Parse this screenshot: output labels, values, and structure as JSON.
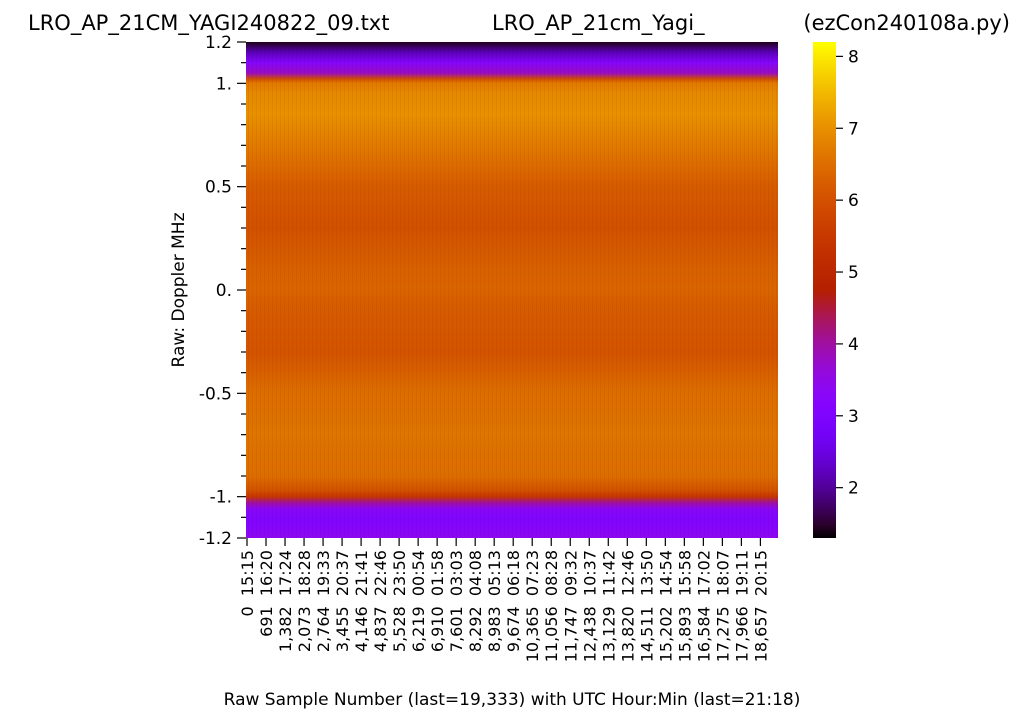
{
  "header": {
    "left": "LRO_AP_21CM_YAGI240822_09.txt",
    "center": "LRO_AP_21cm_Yagi_",
    "right": "(ezCon240108a.py)"
  },
  "chart_data": {
    "type": "heatmap",
    "ylabel": "Raw:  Doppler MHz",
    "xlabel": "Raw Sample Number (last=19,333) with UTC Hour:Min (last=21:18)",
    "ylim": [
      -1.2,
      1.2
    ],
    "y_ticks": [
      {
        "value": 1.2,
        "label": "1.2"
      },
      {
        "value": 1.0,
        "label": "1."
      },
      {
        "value": 0.5,
        "label": "0.5"
      },
      {
        "value": 0.0,
        "label": "0."
      },
      {
        "value": -0.5,
        "label": "-0.5"
      },
      {
        "value": -1.0,
        "label": "-1."
      },
      {
        "value": -1.2,
        "label": "-1.2"
      }
    ],
    "x_tick_labels": [
      "0  15:15",
      "691  16:20",
      "1,382  17:24",
      "2,073  18:28",
      "2,764  19:33",
      "3,455  20:37",
      "4,146  21:41",
      "4,837  22:46",
      "5,528  23:50",
      "6,219  00:54",
      "6,910  01:58",
      "7,601  03:03",
      "8,292  04:08",
      "8,983  05:13",
      "9,674  06:18",
      "10,365  07:23",
      "11,056  08:28",
      "11,747  09:32",
      "12,438  10:37",
      "13,129  11:42",
      "13,820  12:46",
      "14,511  13:50",
      "15,202  14:54",
      "15,893  15:58",
      "16,584  17:02",
      "17,275  18:07",
      "17,966  19:11",
      "18,657  20:15"
    ],
    "x_sample_last": 19333,
    "colorbar": {
      "min": 1.3,
      "max": 8.2,
      "ticks": [
        2,
        3,
        4,
        5,
        6,
        7,
        8
      ],
      "colormap": "gnuplot"
    },
    "spectrum_profile": {
      "doppler_mhz": [
        1.2,
        1.15,
        1.1,
        1.05,
        1.02,
        1.0,
        0.95,
        0.85,
        0.7,
        0.5,
        0.3,
        0.1,
        0.0,
        -0.1,
        -0.3,
        -0.5,
        -0.7,
        -0.9,
        -0.97,
        -1.0,
        -1.03,
        -1.06,
        -1.1,
        -1.15,
        -1.2
      ],
      "value": [
        1.4,
        2.2,
        3.2,
        3.8,
        6.0,
        6.7,
        6.9,
        7.0,
        6.7,
        6.2,
        6.0,
        6.3,
        6.35,
        6.2,
        6.05,
        6.5,
        6.6,
        6.5,
        6.0,
        5.4,
        4.0,
        3.3,
        3.1,
        3.2,
        3.4
      ]
    }
  }
}
